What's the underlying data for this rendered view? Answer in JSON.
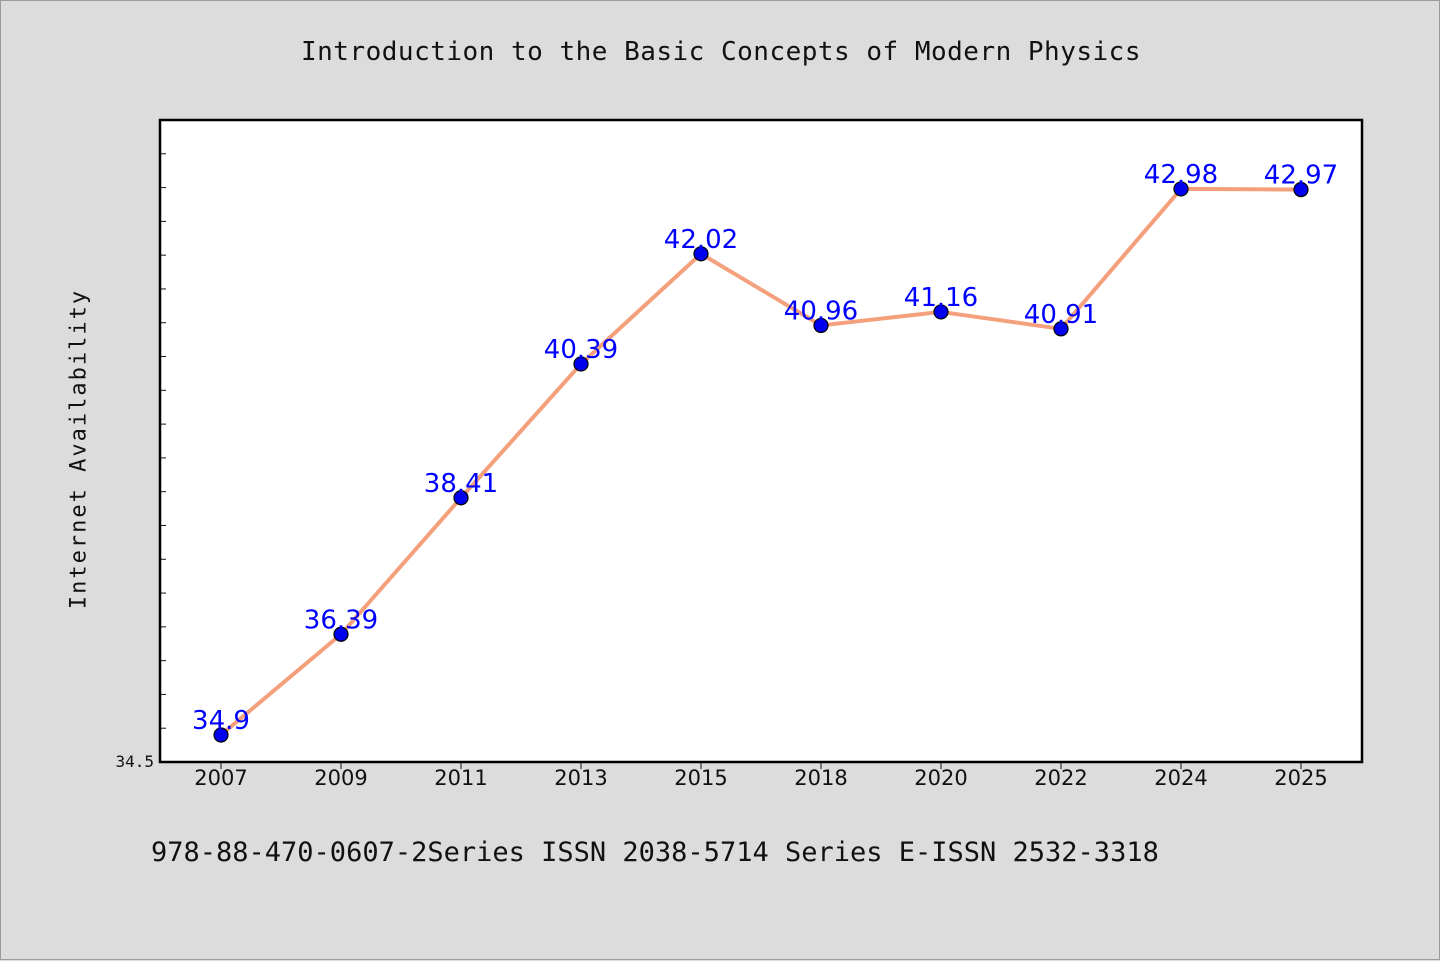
{
  "chart_data": {
    "type": "line",
    "title": "Introduction to the Basic Concepts of Modern Physics",
    "xlabel": "",
    "ylabel": "Internet Availability",
    "categories": [
      "2007",
      "2009",
      "2011",
      "2013",
      "2015",
      "2018",
      "2020",
      "2022",
      "2024",
      "2025"
    ],
    "series": [
      {
        "values": [
          34.9,
          36.39,
          38.41,
          40.39,
          42.02,
          40.96,
          41.16,
          40.91,
          42.98,
          42.97
        ],
        "labels": [
          "34.9",
          "36.39",
          "38.41",
          "40.39",
          "42.02",
          "40.96",
          "41.16",
          "40.91",
          "42.98",
          "42.97"
        ]
      }
    ],
    "ylim": [
      34.5,
      44.0
    ],
    "ytick_labels": [
      "34.5"
    ],
    "grid": false,
    "colors": {
      "line": "#f4a07c",
      "marker": "#0000ee",
      "data_label": "#0000ff",
      "plot_bg": "#ffffff",
      "page_bg": "#dcdcdc"
    }
  },
  "footer": {
    "text": "978-88-470-0607-2Series ISSN 2038-5714 Series E-ISSN 2532-3318"
  }
}
